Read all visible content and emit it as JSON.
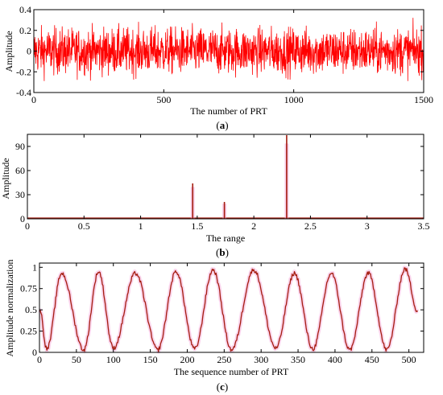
{
  "colors": {
    "series_a": "#ff0000",
    "series_a_dark": "#b40000",
    "series_b": "#a51d10",
    "series_c": "#a51d10",
    "glow": "#f4a0d4",
    "axis": "#000000"
  },
  "chart_data": [
    {
      "type": "line",
      "panel_label": "a",
      "xlabel": "The number of PRT",
      "ylabel": "Amplitude",
      "xlim": [
        0,
        1500
      ],
      "ylim": [
        -0.4,
        0.4
      ],
      "xticks": [
        0,
        500,
        1000,
        1500
      ],
      "yticks": [
        -0.4,
        -0.2,
        0,
        0.2,
        0.4
      ],
      "xtick_labels": [
        "0",
        "500",
        "1000",
        "1500"
      ],
      "ytick_labels": [
        "-0.4",
        "-0.2",
        "0",
        "0.2",
        "0.4"
      ],
      "series": [
        {
          "description": "noise-like echo signal, 1500 samples, amplitude roughly within ±0.35",
          "x_range": [
            0,
            1500
          ],
          "approx_range": [
            -0.37,
            0.33
          ]
        }
      ],
      "grid": false
    },
    {
      "type": "line",
      "panel_label": "b",
      "xlabel": "The range",
      "ylabel": "Amplitude",
      "xlim": [
        0,
        3.5
      ],
      "ylim": [
        0,
        105
      ],
      "xticks": [
        0,
        0.5,
        1,
        1.5,
        2,
        2.5,
        3,
        3.5
      ],
      "yticks": [
        0,
        30,
        60,
        90
      ],
      "xtick_labels": [
        "0",
        "0.5",
        "1",
        "1.5",
        "2",
        "2.5",
        "3",
        "3.5"
      ],
      "ytick_labels": [
        "0",
        "30",
        "60",
        "90"
      ],
      "series": [
        {
          "peaks": [
            {
              "x": 1.46,
              "y": 44
            },
            {
              "x": 1.74,
              "y": 21
            },
            {
              "x": 2.29,
              "y": 104
            }
          ],
          "baseline": 1
        }
      ],
      "grid": false
    },
    {
      "type": "line",
      "panel_label": "c",
      "xlabel": "The sequence number of PRT",
      "ylabel": "Amplitude normalization",
      "xlim": [
        0,
        520
      ],
      "ylim": [
        0,
        1.05
      ],
      "xticks": [
        0,
        50,
        100,
        150,
        200,
        250,
        300,
        350,
        400,
        450,
        500
      ],
      "yticks": [
        0,
        0.25,
        0.5,
        0.75,
        1
      ],
      "xtick_labels": [
        "0",
        "50",
        "100",
        "150",
        "200",
        "250",
        "300",
        "350",
        "400",
        "450",
        "500"
      ],
      "ytick_labels": [
        "0",
        "0.25",
        "0.5",
        "0.75",
        "1"
      ],
      "series": [
        {
          "description": "normalized periodic waveform, about 10 cycles over 512 samples",
          "x": [
            0,
            10,
            30,
            60,
            80,
            100,
            130,
            160,
            185,
            210,
            235,
            260,
            290,
            320,
            345,
            370,
            395,
            420,
            445,
            470,
            495,
            512
          ],
          "y": [
            0.52,
            0.04,
            0.93,
            0.03,
            0.95,
            0.05,
            0.93,
            0.03,
            0.95,
            0.04,
            0.97,
            0.03,
            0.97,
            0.05,
            0.93,
            0.04,
            0.93,
            0.03,
            0.93,
            0.03,
            0.98,
            0.48
          ]
        }
      ],
      "grid": false
    }
  ]
}
